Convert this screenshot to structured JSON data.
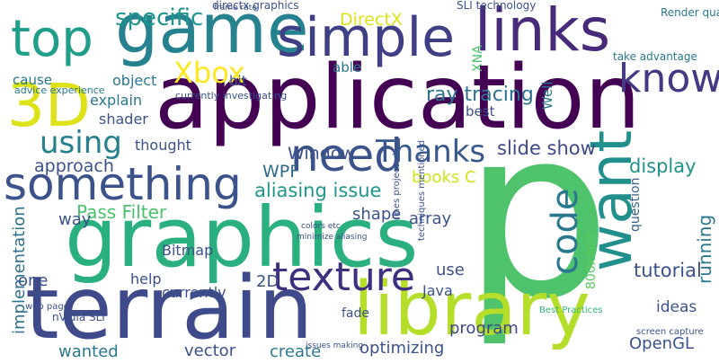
{
  "words": [
    "p",
    "application",
    "terrain",
    "graphics",
    "library",
    "game",
    "simple",
    "links",
    "3D",
    "top",
    "something",
    "want",
    "code",
    "need",
    "texture",
    "know",
    "using",
    "Thanks",
    "Xbox",
    "specific",
    "aliasing issue",
    "Pass Filter",
    "ray tracing",
    "Window",
    "WPF",
    "books C",
    "slide show",
    "display",
    "question",
    "DirectX",
    "XNA",
    "Render quads",
    "Bitmap",
    "help",
    "2D",
    "implementation",
    "vector",
    "create",
    "optimizing",
    "program",
    "tutorial",
    "OpenGL",
    "running",
    "ideas",
    "array",
    "shape",
    "Java",
    "use",
    "way",
    "approach",
    "thought",
    "shader",
    "explain",
    "object",
    "currently",
    "wanted",
    "one",
    "fade",
    "bit",
    "able",
    "best",
    "Well",
    "800x800",
    "cause",
    "frame rate",
    "directx graphics",
    "SLI technology",
    "take advantage",
    "screen capture",
    "nVidia SLI",
    "web page",
    "advice experience",
    "currently investigating",
    "lines projected",
    "techniques mentioned",
    "Best Practices",
    "issues making",
    "colors etc",
    "minimize aliasing"
  ]
}
